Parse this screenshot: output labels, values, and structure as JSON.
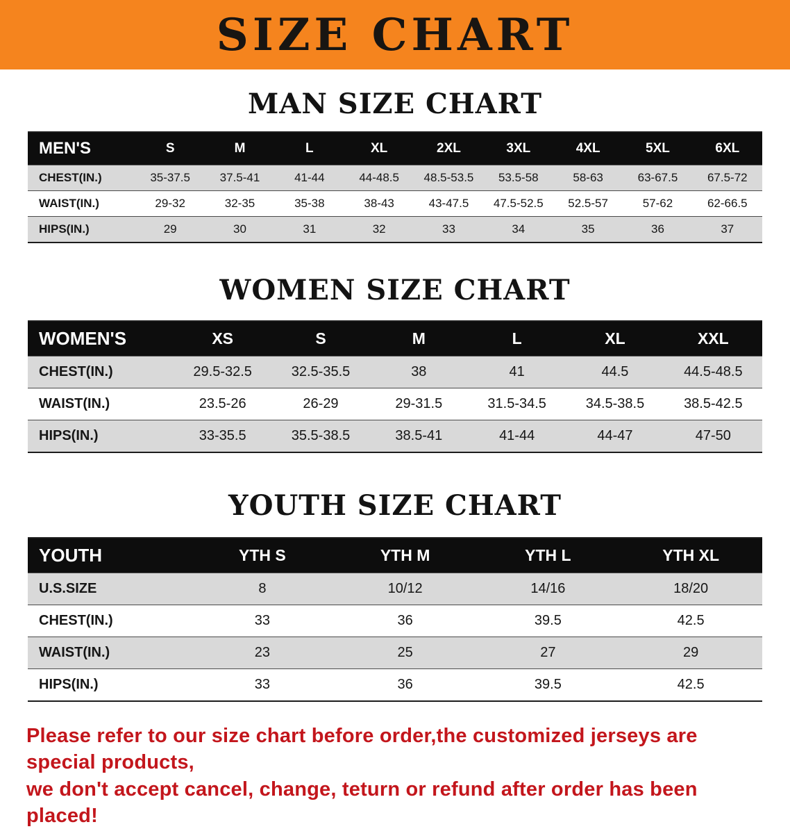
{
  "banner": {
    "title": "SIZE CHART",
    "bg_color": "#F5841E",
    "text_color": "#181512"
  },
  "sections": [
    {
      "heading": "MAN SIZE CHART",
      "table": {
        "header": [
          "MEN'S",
          "S",
          "M",
          "L",
          "XL",
          "2XL",
          "3XL",
          "4XL",
          "5XL",
          "6XL"
        ],
        "rows": [
          {
            "label": "CHEST(IN.)",
            "values": [
              "35-37.5",
              "37.5-41",
              "41-44",
              "44-48.5",
              "48.5-53.5",
              "53.5-58",
              "58-63",
              "63-67.5",
              "67.5-72"
            ]
          },
          {
            "label": "WAIST(IN.)",
            "values": [
              "29-32",
              "32-35",
              "35-38",
              "38-43",
              "43-47.5",
              "47.5-52.5",
              "52.5-57",
              "57-62",
              "62-66.5"
            ]
          },
          {
            "label": "HIPS(IN.)",
            "values": [
              "29",
              "30",
              "31",
              "32",
              "33",
              "34",
              "35",
              "36",
              "37"
            ]
          }
        ]
      }
    },
    {
      "heading": "WOMEN SIZE CHART",
      "table": {
        "header": [
          "WOMEN'S",
          "XS",
          "S",
          "M",
          "L",
          "XL",
          "XXL"
        ],
        "rows": [
          {
            "label": "CHEST(IN.)",
            "values": [
              "29.5-32.5",
              "32.5-35.5",
              "38",
              "41",
              "44.5",
              "44.5-48.5"
            ]
          },
          {
            "label": "WAIST(IN.)",
            "values": [
              "23.5-26",
              "26-29",
              "29-31.5",
              "31.5-34.5",
              "34.5-38.5",
              "38.5-42.5"
            ]
          },
          {
            "label": "HIPS(IN.)",
            "values": [
              "33-35.5",
              "35.5-38.5",
              "38.5-41",
              "41-44",
              "44-47",
              "47-50"
            ]
          }
        ]
      }
    },
    {
      "heading": "YOUTH SIZE CHART",
      "table": {
        "header": [
          "YOUTH",
          "YTH S",
          "YTH M",
          "YTH L",
          "YTH XL"
        ],
        "rows": [
          {
            "label": "U.S.SIZE",
            "values": [
              "8",
              "10/12",
              "14/16",
              "18/20"
            ]
          },
          {
            "label": "CHEST(IN.)",
            "values": [
              "33",
              "36",
              "39.5",
              "42.5"
            ]
          },
          {
            "label": "WAIST(IN.)",
            "values": [
              "23",
              "25",
              "27",
              "29"
            ]
          },
          {
            "label": "HIPS(IN.)",
            "values": [
              "33",
              "36",
              "39.5",
              "42.5"
            ]
          }
        ]
      }
    }
  ],
  "footer_note": {
    "line1": "Please refer to our size chart before order,the customized jerseys are special products,",
    "line2": "we don't accept cancel, change, teturn or refund after order has been placed!",
    "color": "#C3161C"
  }
}
